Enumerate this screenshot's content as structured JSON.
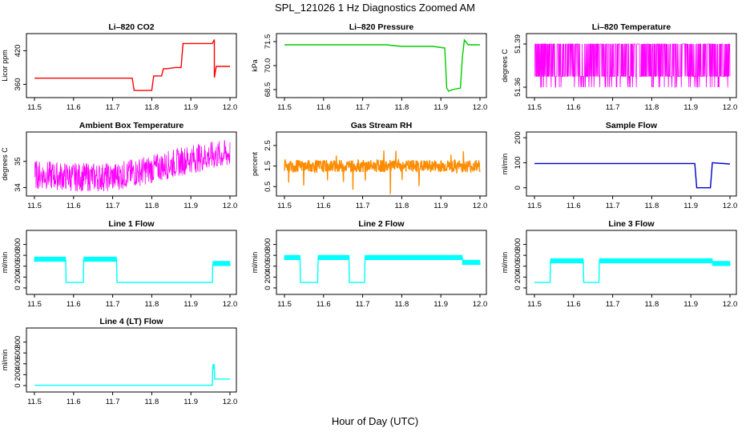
{
  "title": "SPL_121026  1 Hz Diagnostics Zoomed AM",
  "xlabel": "Hour of Day (UTC)",
  "chart_data": [
    {
      "type": "line",
      "title": "Li–820 CO2",
      "ylabel": "Licor ppm",
      "color": "#ff0000",
      "xlim": [
        11.5,
        12.0
      ],
      "ylim": [
        342,
        445
      ],
      "yticks": [
        360,
        420
      ],
      "xticks": [
        11.5,
        11.6,
        11.7,
        11.8,
        11.9,
        12.0
      ],
      "x": [
        11.5,
        11.75,
        11.755,
        11.8,
        11.805,
        11.825,
        11.83,
        11.84,
        11.86,
        11.875,
        11.88,
        11.955,
        11.96,
        11.96,
        11.965,
        12.0
      ],
      "y": [
        371,
        371,
        349,
        349,
        375,
        375,
        388,
        388,
        390,
        390,
        433,
        433,
        440,
        372,
        392,
        392
      ]
    },
    {
      "type": "line",
      "title": "Li–820 Pressure",
      "ylabel": "kPa",
      "color": "#00cc00",
      "xlim": [
        11.5,
        12.0
      ],
      "ylim": [
        68.2,
        71.8
      ],
      "yticks": [
        68.5,
        70.0,
        71.5
      ],
      "xticks": [
        11.5,
        11.6,
        11.7,
        11.8,
        11.9,
        12.0
      ],
      "x": [
        11.5,
        11.6,
        11.7,
        11.76,
        11.78,
        11.8,
        11.85,
        11.88,
        11.91,
        11.915,
        11.92,
        11.93,
        11.95,
        11.955,
        11.96,
        11.97,
        12.0
      ],
      "y": [
        71.3,
        71.3,
        71.3,
        71.3,
        71.25,
        71.2,
        71.2,
        71.2,
        71.1,
        68.6,
        68.4,
        68.5,
        68.6,
        70.5,
        71.6,
        71.3,
        71.3
      ]
    },
    {
      "type": "line",
      "title": "Li–820 Temperature",
      "ylabel": "degrees C",
      "color": "#ff00ff",
      "xlim": [
        11.5,
        12.0
      ],
      "ylim": [
        51.355,
        51.395
      ],
      "yticks": [
        51.36,
        51.39
      ],
      "xticks": [
        11.5,
        11.6,
        11.7,
        11.8,
        11.9,
        12.0
      ],
      "x": [
        11.5,
        12.0
      ],
      "y": [
        51.36,
        51.39
      ]
    },
    {
      "type": "line",
      "title": "Ambient Box Temperature",
      "ylabel": "degrees C",
      "color": "#ff00ff",
      "xlim": [
        11.5,
        12.0
      ],
      "ylim": [
        33.8,
        36.0
      ],
      "yticks": [
        34.0,
        35.0
      ],
      "xticks": [
        11.5,
        11.6,
        11.7,
        11.8,
        11.9,
        12.0
      ],
      "x": [
        11.5,
        11.6,
        11.7,
        11.8,
        11.9,
        12.0
      ],
      "y": [
        34.5,
        34.4,
        34.4,
        34.7,
        35.1,
        35.3
      ]
    },
    {
      "type": "line",
      "title": "Gas Stream RH",
      "ylabel": "percent",
      "color": "#ff8c00",
      "xlim": [
        11.5,
        12.0
      ],
      "ylim": [
        0.2,
        3.0
      ],
      "yticks": [
        0.5,
        1.5,
        2.5
      ],
      "xticks": [
        11.5,
        11.6,
        11.7,
        11.8,
        11.9,
        12.0
      ],
      "x": [
        11.5,
        11.6,
        11.7,
        11.8,
        11.9,
        12.0
      ],
      "y": [
        1.5,
        1.5,
        1.5,
        1.5,
        1.5,
        1.5
      ]
    },
    {
      "type": "line",
      "title": "Sample Flow",
      "ylabel": "ml/min",
      "color": "#0000cc",
      "xlim": [
        11.5,
        12.0
      ],
      "ylim": [
        -20,
        210
      ],
      "yticks": [
        0,
        100,
        200
      ],
      "xticks": [
        11.5,
        11.6,
        11.7,
        11.8,
        11.9,
        12.0
      ],
      "x": [
        11.5,
        11.91,
        11.915,
        11.95,
        11.955,
        12.0
      ],
      "y": [
        97,
        97,
        0,
        0,
        100,
        95
      ]
    },
    {
      "type": "line",
      "title": "Line 1 Flow",
      "ylabel": "ml/min",
      "color": "#00ffff",
      "xlim": [
        11.5,
        12.0
      ],
      "ylim": [
        -60,
        1000
      ],
      "yticks": [
        0,
        200,
        400,
        600,
        800
      ],
      "xticks": [
        11.5,
        11.6,
        11.7,
        11.8,
        11.9,
        12.0
      ],
      "x": [
        11.5,
        11.58,
        11.581,
        11.625,
        11.626,
        11.71,
        11.711,
        11.955,
        11.956,
        12.0
      ],
      "y": [
        530,
        530,
        100,
        100,
        530,
        530,
        100,
        100,
        450,
        450
      ]
    },
    {
      "type": "line",
      "title": "Line 2 Flow",
      "ylabel": "ml/min",
      "color": "#00ffff",
      "xlim": [
        11.5,
        12.0
      ],
      "ylim": [
        -60,
        1000
      ],
      "yticks": [
        0,
        200,
        400,
        600,
        800
      ],
      "xticks": [
        11.5,
        11.6,
        11.7,
        11.8,
        11.9,
        12.0
      ],
      "x": [
        11.5,
        11.54,
        11.541,
        11.585,
        11.586,
        11.665,
        11.666,
        11.705,
        11.706,
        11.955,
        11.956,
        12.0
      ],
      "y": [
        560,
        560,
        100,
        100,
        560,
        560,
        100,
        100,
        560,
        560,
        470,
        470
      ]
    },
    {
      "type": "line",
      "title": "Line 3 Flow",
      "ylabel": "ml/min",
      "color": "#00ffff",
      "xlim": [
        11.5,
        12.0
      ],
      "ylim": [
        -60,
        1000
      ],
      "yticks": [
        0,
        200,
        400,
        600,
        800
      ],
      "xticks": [
        11.5,
        11.6,
        11.7,
        11.8,
        11.9,
        12.0
      ],
      "x": [
        11.5,
        11.54,
        11.541,
        11.625,
        11.626,
        11.665,
        11.666,
        11.955,
        11.956,
        12.0
      ],
      "y": [
        100,
        100,
        500,
        500,
        100,
        100,
        500,
        500,
        450,
        450
      ]
    },
    {
      "type": "line",
      "title": "Line 4 (LT) Flow",
      "ylabel": "ml/min",
      "color": "#00ffff",
      "xlim": [
        11.5,
        12.0
      ],
      "ylim": [
        -60,
        1000
      ],
      "yticks": [
        0,
        200,
        400,
        600,
        800
      ],
      "xticks": [
        11.5,
        11.6,
        11.7,
        11.8,
        11.9,
        12.0
      ],
      "x": [
        11.5,
        11.955,
        11.956,
        11.96,
        11.961,
        12.0
      ],
      "y": [
        5,
        5,
        350,
        350,
        120,
        120
      ]
    }
  ]
}
